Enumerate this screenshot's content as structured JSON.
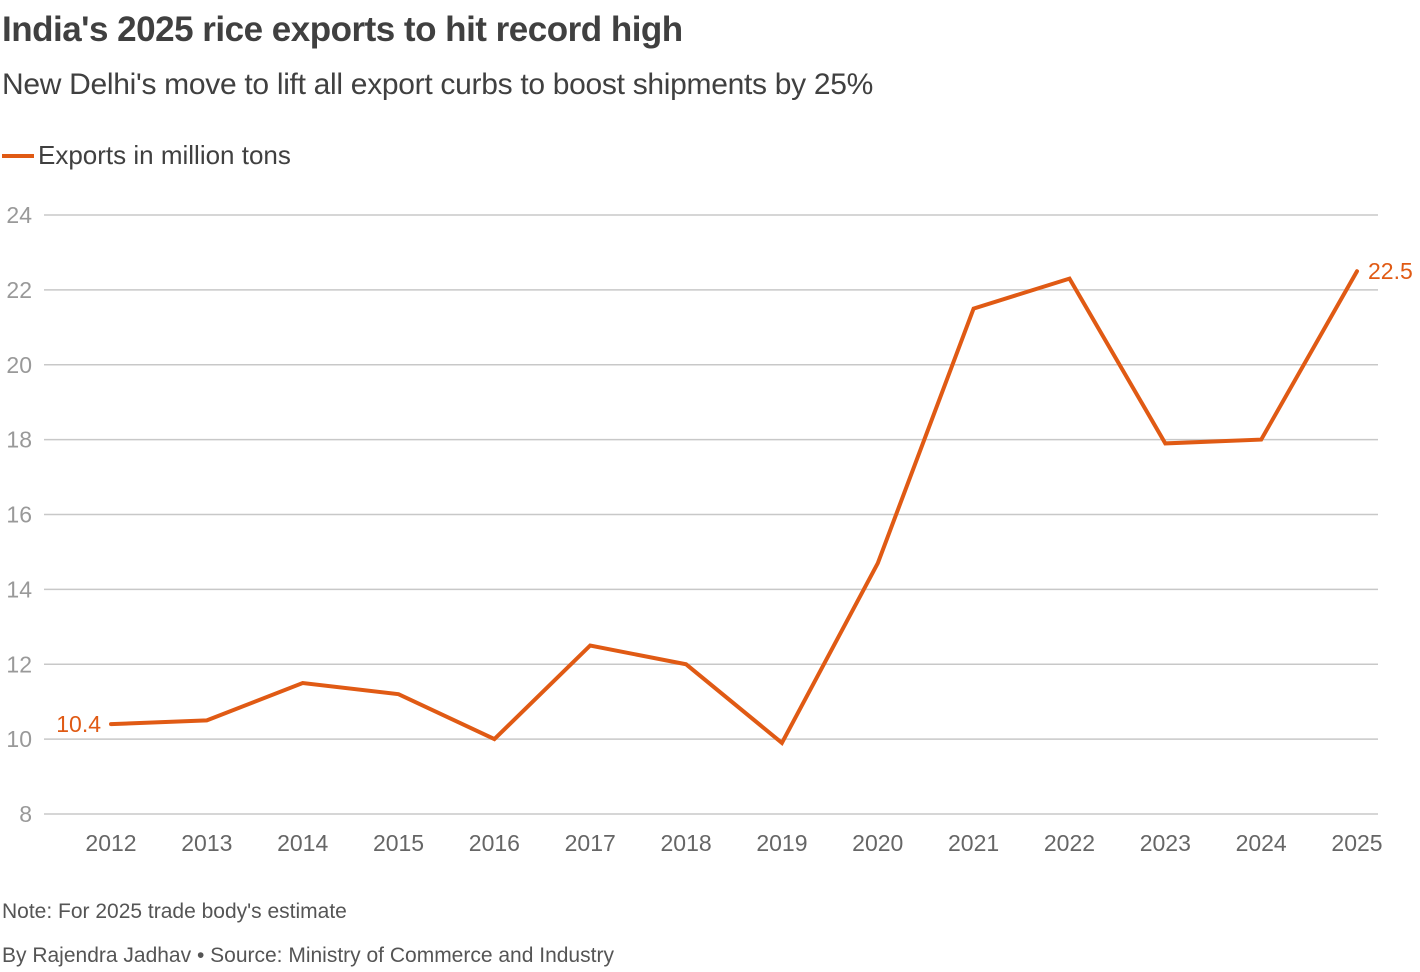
{
  "header": {
    "title": "India's 2025 rice exports to hit record high",
    "subtitle": "New Delhi's move to lift all export curbs to boost shipments by 25%"
  },
  "colors": {
    "series": "#e05a14",
    "grid": "#c8c8c8",
    "text": "#404040"
  },
  "chart_data": {
    "type": "line",
    "title": "India's 2025 rice exports to hit record high",
    "subtitle": "New Delhi's move to lift all export curbs to boost shipments by 25%",
    "xlabel": "",
    "ylabel": "",
    "categories": [
      "2012",
      "2013",
      "2014",
      "2015",
      "2016",
      "2017",
      "2018",
      "2019",
      "2020",
      "2021",
      "2022",
      "2023",
      "2024",
      "2025"
    ],
    "series": [
      {
        "name": "Exports in million tons",
        "values": [
          10.4,
          10.5,
          11.5,
          11.2,
          10.0,
          12.5,
          12.0,
          9.9,
          14.7,
          21.5,
          22.3,
          17.9,
          18.0,
          22.5
        ]
      }
    ],
    "ylim": [
      8,
      24
    ],
    "yticks": [
      "8",
      "10",
      "12",
      "14",
      "16",
      "18",
      "20",
      "22",
      "24"
    ],
    "grid": true,
    "legend_position": "top-left",
    "annotations": [
      {
        "category": "2012",
        "text": "10.4"
      },
      {
        "category": "2025",
        "text": "22.5"
      }
    ]
  },
  "footer": {
    "note": "Note: For 2025 trade body's estimate",
    "credit": "By Rajendra Jadhav • Source: Ministry of Commerce and Industry"
  }
}
